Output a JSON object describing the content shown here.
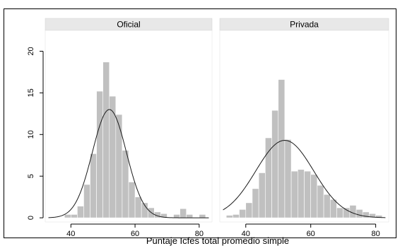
{
  "chart_data": {
    "type": "bar",
    "xlabel": "Puntaje Icfes total promedio simple",
    "ylabel": "",
    "x_ticks": [
      40,
      60,
      80
    ],
    "y_ticks": [
      0,
      5,
      10,
      15,
      20
    ],
    "xlim": [
      32,
      84
    ],
    "ylim": [
      -0.5,
      22.5
    ],
    "bin_width": 2,
    "panels": [
      {
        "name": "Oficial",
        "bins": [
          {
            "x": 39,
            "y": 0.4
          },
          {
            "x": 41,
            "y": 0.4
          },
          {
            "x": 43,
            "y": 1.4
          },
          {
            "x": 45,
            "y": 4.0
          },
          {
            "x": 47,
            "y": 7.7
          },
          {
            "x": 49,
            "y": 15.2
          },
          {
            "x": 51,
            "y": 18.7
          },
          {
            "x": 53,
            "y": 14.6
          },
          {
            "x": 55,
            "y": 12.4
          },
          {
            "x": 57,
            "y": 8.1
          },
          {
            "x": 59,
            "y": 4.3
          },
          {
            "x": 61,
            "y": 2.5
          },
          {
            "x": 63,
            "y": 1.8
          },
          {
            "x": 65,
            "y": 1.2
          },
          {
            "x": 67,
            "y": 0.7
          },
          {
            "x": 69,
            "y": 0.5
          },
          {
            "x": 73,
            "y": 0.4
          },
          {
            "x": 75,
            "y": 1.1
          },
          {
            "x": 77,
            "y": 0.4
          },
          {
            "x": 81,
            "y": 0.4
          }
        ],
        "normal_curve": {
          "mean": 52,
          "sd": 5.3,
          "peak": 13.0
        }
      },
      {
        "name": "Privada",
        "bins": [
          {
            "x": 35,
            "y": 0.3
          },
          {
            "x": 37,
            "y": 0.4
          },
          {
            "x": 39,
            "y": 1.0
          },
          {
            "x": 41,
            "y": 1.8
          },
          {
            "x": 43,
            "y": 3.5
          },
          {
            "x": 45,
            "y": 5.4
          },
          {
            "x": 47,
            "y": 9.6
          },
          {
            "x": 49,
            "y": 12.9
          },
          {
            "x": 51,
            "y": 16.6
          },
          {
            "x": 53,
            "y": 9.4
          },
          {
            "x": 55,
            "y": 5.6
          },
          {
            "x": 57,
            "y": 5.8
          },
          {
            "x": 59,
            "y": 5.6
          },
          {
            "x": 61,
            "y": 5.2
          },
          {
            "x": 63,
            "y": 3.9
          },
          {
            "x": 65,
            "y": 2.8
          },
          {
            "x": 67,
            "y": 2.2
          },
          {
            "x": 69,
            "y": 1.2
          },
          {
            "x": 71,
            "y": 1.2
          },
          {
            "x": 73,
            "y": 1.5
          },
          {
            "x": 75,
            "y": 1.0
          },
          {
            "x": 77,
            "y": 0.7
          },
          {
            "x": 79,
            "y": 0.5
          },
          {
            "x": 81,
            "y": 0.3
          }
        ],
        "normal_curve": {
          "mean": 52,
          "sd": 8.9,
          "peak": 9.3
        }
      }
    ],
    "colors": {
      "bar": "#c0c0c0",
      "panel_header": "#e8e8e8",
      "curve": "#1a1a1a",
      "frame": "#000000"
    }
  }
}
